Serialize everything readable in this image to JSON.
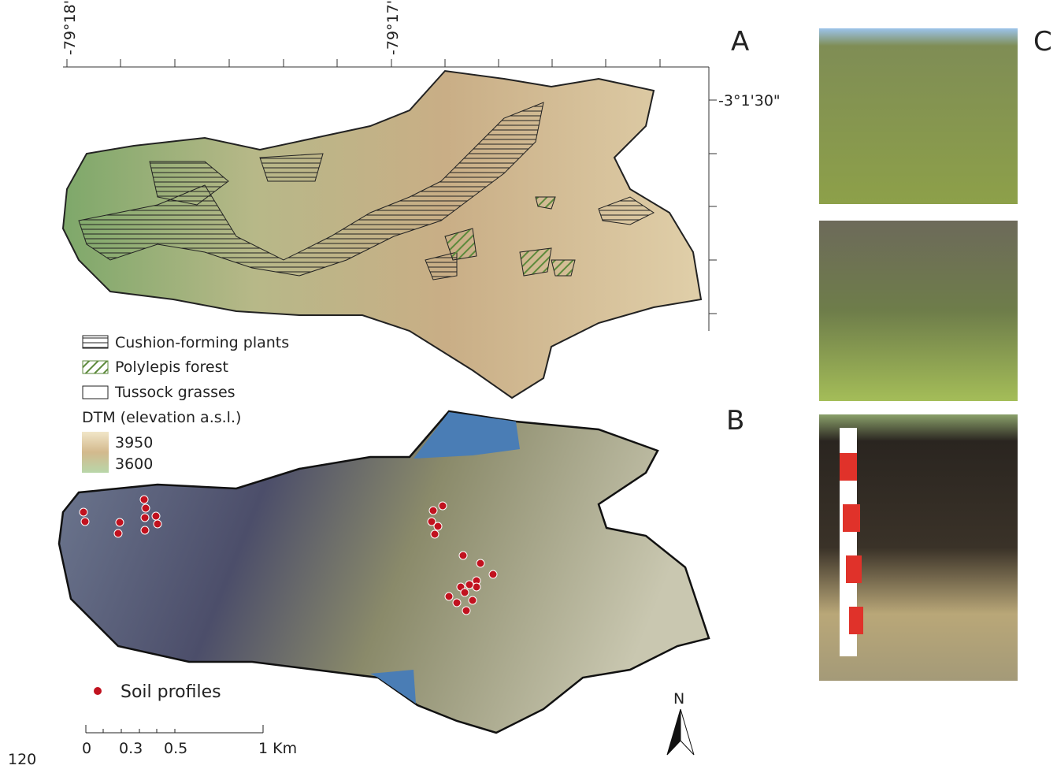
{
  "panel_a": {
    "label": "A",
    "x_coords": [
      "-79°18'",
      "-79°17'"
    ],
    "y_coords": [
      "-3°1'30\""
    ]
  },
  "legend": {
    "cushion": "Cushion-forming plants",
    "polylepis": "Polylepis forest",
    "tussock": "Tussock grasses",
    "dtm_title": "DTM (elevation a.s.l.)",
    "dtm_high": "3950",
    "dtm_low": "3600"
  },
  "panel_b": {
    "label": "B",
    "soil_profiles": "Soil profiles",
    "scale_ticks": [
      "0",
      "0.3",
      "0.5",
      "1 Km"
    ],
    "north": "N"
  },
  "panel_c": {
    "label": "C"
  },
  "page_number": "120"
}
